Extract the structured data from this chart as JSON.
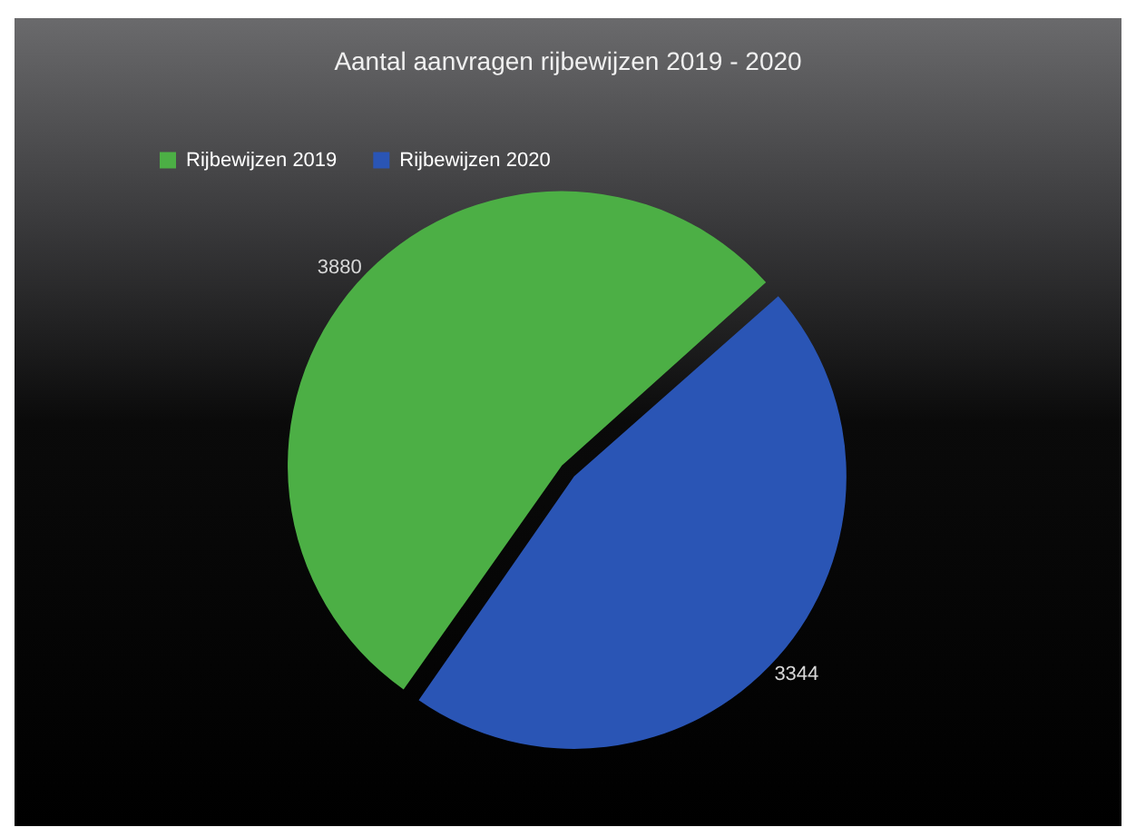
{
  "chart_data": {
    "type": "pie",
    "title": "Aantal aanvragen rijbewijzen 2019 - 2020",
    "categories": [
      "Rijbewijzen 2019",
      "Rijbewijzen 2020"
    ],
    "values": [
      3880,
      3344
    ],
    "colors": [
      "#4caf45",
      "#2a55b5"
    ],
    "legend": "top left",
    "data_labels": true
  }
}
